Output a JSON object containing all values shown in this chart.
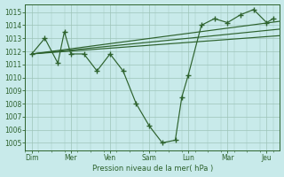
{
  "bg_color": "#c8eaea",
  "grid_color": "#9dc4b8",
  "line_color": "#2d622d",
  "xlabel": "Pression niveau de la mer( hPa )",
  "ylim": [
    1004.4,
    1015.6
  ],
  "xlim": [
    0,
    19.5
  ],
  "yticks": [
    1005,
    1006,
    1007,
    1008,
    1009,
    1010,
    1011,
    1012,
    1013,
    1014,
    1015
  ],
  "day_labels": [
    "Dim",
    "Mer",
    "Ven",
    "Sam",
    "Lun",
    "Mar",
    "Jeu"
  ],
  "day_positions": [
    0.5,
    3.5,
    6.5,
    9.5,
    12.5,
    15.5,
    18.5
  ],
  "jagged_x": [
    0.5,
    1.5,
    2.5,
    3.0,
    3.5,
    4.5,
    5.5,
    6.5,
    7.5,
    8.5,
    9.5,
    10.5,
    11.5,
    12.0,
    12.5,
    13.5,
    14.5,
    15.5,
    16.5,
    17.5,
    18.5,
    19.0
  ],
  "jagged_y": [
    1011.8,
    1013.0,
    1011.1,
    1013.5,
    1011.8,
    1011.8,
    1010.5,
    1011.8,
    1010.5,
    1008.0,
    1006.3,
    1005.0,
    1005.2,
    1008.5,
    1010.2,
    1014.0,
    1014.5,
    1014.2,
    1014.8,
    1015.2,
    1014.2,
    1014.5
  ],
  "ref_line1": {
    "x": [
      0.5,
      19.5
    ],
    "y": [
      1011.8,
      1014.3
    ]
  },
  "ref_line2": {
    "x": [
      0.5,
      19.5
    ],
    "y": [
      1011.8,
      1013.7
    ]
  },
  "ref_line3": {
    "x": [
      0.5,
      19.5
    ],
    "y": [
      1011.8,
      1013.2
    ]
  }
}
